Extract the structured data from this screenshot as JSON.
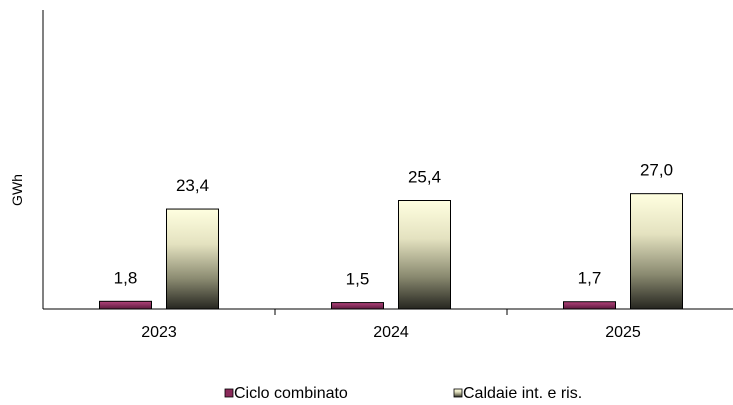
{
  "chart_data": {
    "type": "bar",
    "categories": [
      "2023",
      "2024",
      "2025"
    ],
    "series": [
      {
        "name": "Ciclo combinato",
        "values": [
          1.8,
          1.5,
          1.7
        ],
        "labels": [
          "1,8",
          "1,5",
          "1,7"
        ],
        "color": "#8b2a5a"
      },
      {
        "name": "Caldaie int. e ris.",
        "values": [
          23.4,
          25.4,
          27.0
        ],
        "labels": [
          "23,4",
          "25,4",
          "27,0"
        ],
        "color": "#ffffe0"
      }
    ],
    "ylabel": "GWh",
    "xlabel": "",
    "title": "",
    "ylim": [
      0,
      70
    ],
    "grid": false,
    "legend_position": "bottom"
  }
}
